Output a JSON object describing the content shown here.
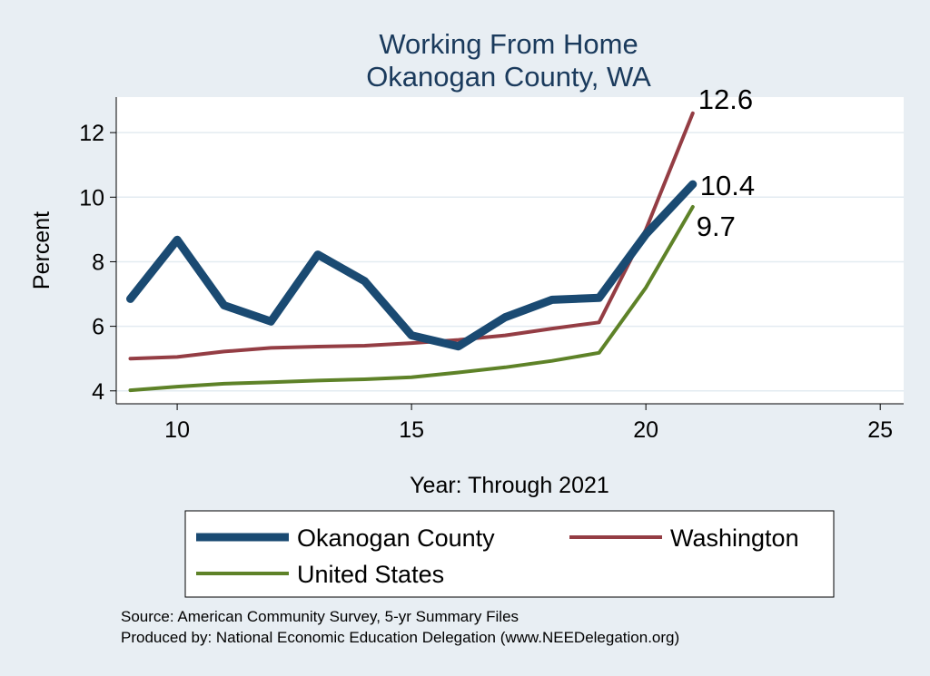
{
  "chart_data": {
    "type": "line",
    "title": [
      "Working From Home",
      "Okanogan County, WA"
    ],
    "xlabel": "Year: Through 2021",
    "ylabel": "Percent",
    "xlim": [
      8.7,
      25.5
    ],
    "ylim": [
      3.6,
      13.1
    ],
    "xticks": [
      10,
      15,
      20,
      25
    ],
    "yticks": [
      4,
      6,
      8,
      10,
      12
    ],
    "grid": "horizontal",
    "legend_position": "bottom",
    "series": [
      {
        "name": "Okanogan County",
        "color": "#1a4a72",
        "x": [
          9,
          10,
          11,
          12,
          13,
          14,
          15,
          16,
          17,
          18,
          19,
          20,
          21
        ],
        "values": [
          6.85,
          8.68,
          6.65,
          6.15,
          8.22,
          7.4,
          5.72,
          5.38,
          6.28,
          6.82,
          6.88,
          8.85,
          10.4
        ],
        "end_label": "10.4"
      },
      {
        "name": "Washington",
        "color": "#943d44",
        "x": [
          9,
          10,
          11,
          12,
          13,
          14,
          15,
          16,
          17,
          18,
          19,
          20,
          21
        ],
        "values": [
          5.0,
          5.05,
          5.22,
          5.33,
          5.37,
          5.4,
          5.48,
          5.58,
          5.72,
          5.93,
          6.12,
          9.0,
          12.6
        ],
        "end_label": "12.6"
      },
      {
        "name": "United States",
        "color": "#5e8228",
        "x": [
          9,
          10,
          11,
          12,
          13,
          14,
          15,
          16,
          17,
          18,
          19,
          20,
          21
        ],
        "values": [
          4.02,
          4.13,
          4.22,
          4.27,
          4.32,
          4.36,
          4.42,
          4.57,
          4.73,
          4.93,
          5.18,
          7.2,
          9.7
        ],
        "end_label": "9.7"
      }
    ],
    "source_lines": [
      "Source: American Community Survey, 5-yr Summary Files",
      "Produced by: National Economic Education Delegation (www.NEEDelegation.org)"
    ]
  }
}
